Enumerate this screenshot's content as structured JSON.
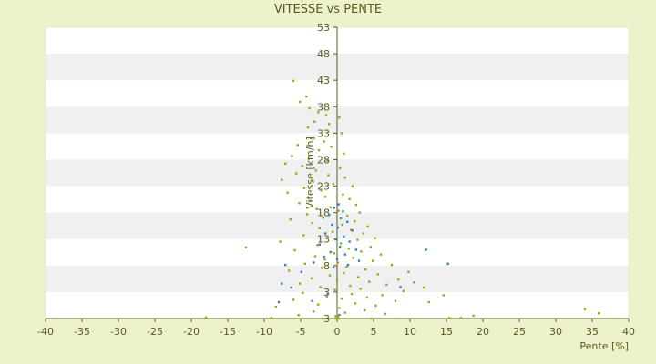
{
  "chart_data": {
    "type": "scatter",
    "title": "VITESSE vs PENTE",
    "xlabel": "Pente [%]",
    "ylabel": "Vitesse [km/h]",
    "xlim": [
      -40,
      40
    ],
    "xticks": [
      -40,
      -35,
      -30,
      -25,
      -20,
      -15,
      -10,
      -5,
      0,
      5,
      10,
      15,
      20,
      25,
      30,
      35,
      40
    ],
    "ylim": [
      3,
      53
    ],
    "yticks": [
      "3",
      "3",
      "8",
      "13",
      "18",
      "23",
      "28",
      "33",
      "38",
      "43",
      "48",
      "53"
    ],
    "grid": "horizontal bands",
    "legend": "none",
    "colors": {
      "background": "#eef2cc",
      "plot_band_light": "#ffffff",
      "plot_band_dark": "#f0f0f0",
      "axis": "#5a5a1e",
      "series_1": "#9aaa1e",
      "series_2": "#2b86c8"
    },
    "series": [
      {
        "color": "#9aaa1e",
        "points": [
          [
            -6.0,
            43.8
          ],
          [
            -4.2,
            41.1
          ],
          [
            -5.1,
            40.2
          ],
          [
            -3.8,
            39.1
          ],
          [
            -2.6,
            38.4
          ],
          [
            -1.5,
            37.9
          ],
          [
            0.3,
            37.5
          ],
          [
            -3.1,
            36.8
          ],
          [
            -1.1,
            36.4
          ],
          [
            -4.0,
            35.8
          ],
          [
            -2.0,
            35.1
          ],
          [
            0.6,
            34.8
          ],
          [
            -3.6,
            33.9
          ],
          [
            -1.8,
            33.4
          ],
          [
            -5.4,
            32.8
          ],
          [
            -0.8,
            32.5
          ],
          [
            -2.5,
            31.9
          ],
          [
            0.9,
            31.3
          ],
          [
            -6.2,
            30.9
          ],
          [
            -3.9,
            30.4
          ],
          [
            -1.4,
            30.1
          ],
          [
            -7.1,
            29.6
          ],
          [
            -4.8,
            29.2
          ],
          [
            0.4,
            28.8
          ],
          [
            -2.9,
            28.4
          ],
          [
            -5.6,
            27.9
          ],
          [
            -1.2,
            27.6
          ],
          [
            1.1,
            27.2
          ],
          [
            -7.6,
            26.8
          ],
          [
            -3.3,
            26.5
          ],
          [
            -0.5,
            26.1
          ],
          [
            2.1,
            25.7
          ],
          [
            -4.5,
            25.4
          ],
          [
            -2.2,
            25.0
          ],
          [
            -6.8,
            24.6
          ],
          [
            0.8,
            24.3
          ],
          [
            -1.6,
            23.9
          ],
          [
            1.7,
            23.5
          ],
          [
            -3.7,
            23.2
          ],
          [
            -5.2,
            22.8
          ],
          [
            2.6,
            22.5
          ],
          [
            -0.9,
            22.1
          ],
          [
            -2.8,
            21.8
          ],
          [
            0.2,
            21.5
          ],
          [
            3.1,
            21.2
          ],
          [
            -4.1,
            20.9
          ],
          [
            1.4,
            20.6
          ],
          [
            -1.9,
            20.3
          ],
          [
            -6.4,
            20.0
          ],
          [
            2.4,
            19.7
          ],
          [
            -3.4,
            19.4
          ],
          [
            0.7,
            19.1
          ],
          [
            4.2,
            18.8
          ],
          [
            -2.4,
            18.5
          ],
          [
            1.9,
            18.2
          ],
          [
            -0.6,
            17.9
          ],
          [
            3.6,
            17.6
          ],
          [
            -4.6,
            17.3
          ],
          [
            -1.3,
            17.0
          ],
          [
            5.2,
            16.8
          ],
          [
            2.8,
            16.5
          ],
          [
            -7.8,
            16.2
          ],
          [
            0.5,
            15.9
          ],
          [
            -2.7,
            15.6
          ],
          [
            4.6,
            15.3
          ],
          [
            -12.5,
            15.2
          ],
          [
            1.6,
            15.0
          ],
          [
            -5.8,
            14.7
          ],
          [
            3.3,
            14.5
          ],
          [
            -0.4,
            14.2
          ],
          [
            6.0,
            14.0
          ],
          [
            -3.0,
            13.7
          ],
          [
            2.2,
            13.4
          ],
          [
            -1.7,
            13.1
          ],
          [
            4.9,
            12.9
          ],
          [
            0.1,
            12.6
          ],
          [
            -4.4,
            12.4
          ],
          [
            7.5,
            12.2
          ],
          [
            1.3,
            11.9
          ],
          [
            -2.1,
            11.7
          ],
          [
            3.9,
            11.4
          ],
          [
            -6.6,
            11.2
          ],
          [
            9.8,
            11.0
          ],
          [
            0.9,
            10.8
          ],
          [
            5.6,
            10.6
          ],
          [
            -1.0,
            10.4
          ],
          [
            2.9,
            10.1
          ],
          [
            -3.5,
            9.9
          ],
          [
            8.4,
            9.7
          ],
          [
            0.0,
            9.5
          ],
          [
            4.4,
            9.3
          ],
          [
            -5.1,
            9.0
          ],
          [
            6.8,
            8.8
          ],
          [
            1.8,
            8.6
          ],
          [
            -2.3,
            8.4
          ],
          [
            11.9,
            8.3
          ],
          [
            3.2,
            8.1
          ],
          [
            -0.3,
            7.9
          ],
          [
            9.1,
            7.7
          ],
          [
            -4.7,
            7.4
          ],
          [
            2.0,
            7.2
          ],
          [
            6.2,
            7.0
          ],
          [
            14.6,
            7.0
          ],
          [
            -1.4,
            6.8
          ],
          [
            4.1,
            6.6
          ],
          [
            0.6,
            6.4
          ],
          [
            -6.0,
            6.2
          ],
          [
            8.0,
            6.0
          ],
          [
            12.6,
            5.8
          ],
          [
            2.5,
            5.6
          ],
          [
            -2.6,
            5.4
          ],
          [
            5.3,
            5.2
          ],
          [
            -8.4,
            5.0
          ],
          [
            0.3,
            4.8
          ],
          [
            34.0,
            4.6
          ],
          [
            3.8,
            4.4
          ],
          [
            -3.2,
            4.2
          ],
          [
            1.1,
            4.0
          ],
          [
            35.9,
            3.9
          ],
          [
            6.6,
            3.8
          ],
          [
            -5.3,
            3.6
          ],
          [
            18.7,
            3.5
          ],
          [
            -0.2,
            3.4
          ],
          [
            0.1,
            3.3
          ],
          [
            -18.0,
            3.2
          ],
          [
            15.4,
            3.1
          ],
          [
            -9.0,
            3.1
          ],
          [
            4.7,
            3.0
          ],
          [
            17.0,
            3.1
          ],
          [
            -0.1,
            3.0
          ],
          [
            0.2,
            3.0
          ],
          [
            -2.0,
            3.0
          ]
        ]
      },
      {
        "color": "#2b86c8",
        "points": [
          [
            0.2,
            22.6
          ],
          [
            -0.4,
            22.0
          ],
          [
            0.8,
            21.4
          ],
          [
            -1.1,
            20.8
          ],
          [
            0.5,
            20.2
          ],
          [
            1.4,
            19.6
          ],
          [
            -0.7,
            19.1
          ],
          [
            0.1,
            18.6
          ],
          [
            2.1,
            18.1
          ],
          [
            -1.6,
            17.6
          ],
          [
            0.9,
            17.1
          ],
          [
            -0.2,
            16.6
          ],
          [
            1.7,
            16.2
          ],
          [
            -2.4,
            15.7
          ],
          [
            0.4,
            15.3
          ],
          [
            2.6,
            14.8
          ],
          [
            -0.9,
            14.4
          ],
          [
            1.1,
            14.0
          ],
          [
            -1.8,
            13.6
          ],
          [
            0.0,
            13.2
          ],
          [
            3.0,
            12.9
          ],
          [
            -3.2,
            12.6
          ],
          [
            1.5,
            12.2
          ],
          [
            -0.5,
            11.8
          ],
          [
            12.2,
            14.8
          ],
          [
            15.2,
            12.4
          ],
          [
            -7.1,
            12.2
          ],
          [
            -4.9,
            11.0
          ],
          [
            -7.6,
            9.0
          ],
          [
            -6.3,
            8.3
          ],
          [
            -3.4,
            6.0
          ],
          [
            -8.0,
            5.8
          ],
          [
            10.6,
            9.2
          ],
          [
            8.7,
            8.4
          ],
          [
            -1.3,
            7.2
          ],
          [
            0.3,
            3.6
          ]
        ]
      }
    ]
  }
}
